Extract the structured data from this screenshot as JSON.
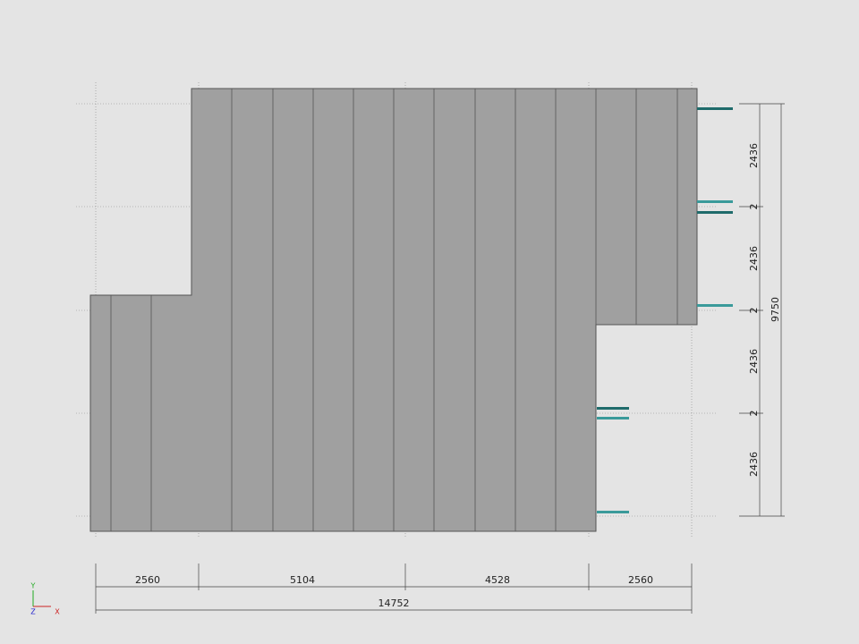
{
  "dimensions": {
    "horizontal": [
      "2560",
      "5104",
      "4528",
      "2560"
    ],
    "horizontal_total": "14752",
    "vertical": [
      "2436",
      "2436",
      "2436",
      "2436"
    ],
    "vertical_gaps": [
      "2",
      "2",
      "2"
    ],
    "vertical_total": "9750"
  },
  "axes": {
    "y": "Y",
    "z": "Z",
    "x": "X"
  }
}
